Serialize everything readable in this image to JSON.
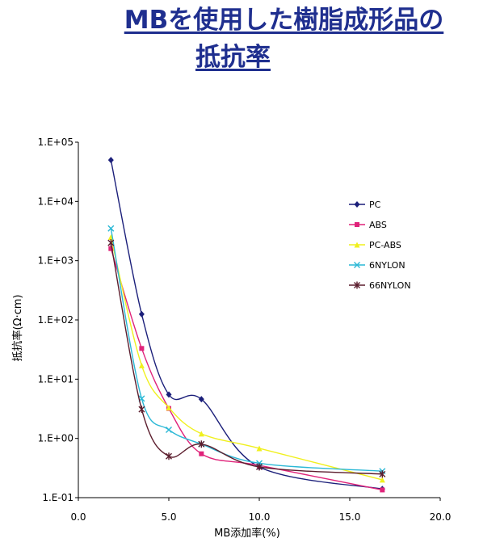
{
  "title_line1": "MBを使用した樹脂成形品の",
  "title_line2": "抵抗率",
  "chart_data": {
    "type": "line",
    "title": "MBを使用した樹脂成形品の抵抗率",
    "xlabel": "MB添加率(%)",
    "ylabel": "抵抗率(Ω·cm)",
    "xlim": [
      0,
      20
    ],
    "ylim": [
      0.1,
      100000
    ],
    "yscale": "log",
    "x_ticks": [
      "0.0",
      "5.0",
      "10.0",
      "15.0",
      "20.0"
    ],
    "y_ticks": [
      "1.E-01",
      "1.E+00",
      "1.E+01",
      "1.E+02",
      "1.E+03",
      "1.E+04",
      "1.E+05"
    ],
    "grid": false,
    "legend_position": "right",
    "series": [
      {
        "name": "PC",
        "color": "#1b1f7a",
        "marker": "diamond",
        "x": [
          1.8,
          3.5,
          5.0,
          6.8,
          10.0,
          16.8
        ],
        "y": [
          50000,
          125,
          5.5,
          4.6,
          0.33,
          0.14
        ]
      },
      {
        "name": "ABS",
        "color": "#e0237a",
        "marker": "square",
        "x": [
          1.8,
          3.5,
          5.0,
          6.8,
          10.0,
          16.8
        ],
        "y": [
          1600,
          33,
          3.2,
          0.55,
          0.35,
          0.135
        ]
      },
      {
        "name": "PC-ABS",
        "color": "#f0f01e",
        "marker": "triangle",
        "x": [
          1.8,
          3.5,
          5.0,
          6.8,
          10.0,
          16.8
        ],
        "y": [
          2500,
          17,
          3.3,
          1.2,
          0.68,
          0.2
        ]
      },
      {
        "name": "6NYLON",
        "color": "#2bb8d6",
        "marker": "x",
        "x": [
          1.8,
          3.5,
          5.0,
          6.8,
          10.0,
          16.8
        ],
        "y": [
          3500,
          4.7,
          1.4,
          0.8,
          0.38,
          0.28
        ]
      },
      {
        "name": "66NYLON",
        "color": "#5c1e2e",
        "marker": "star",
        "x": [
          1.8,
          3.5,
          5.0,
          6.8,
          10.0,
          16.8
        ],
        "y": [
          2000,
          3.1,
          0.5,
          0.8,
          0.33,
          0.25
        ]
      }
    ]
  }
}
